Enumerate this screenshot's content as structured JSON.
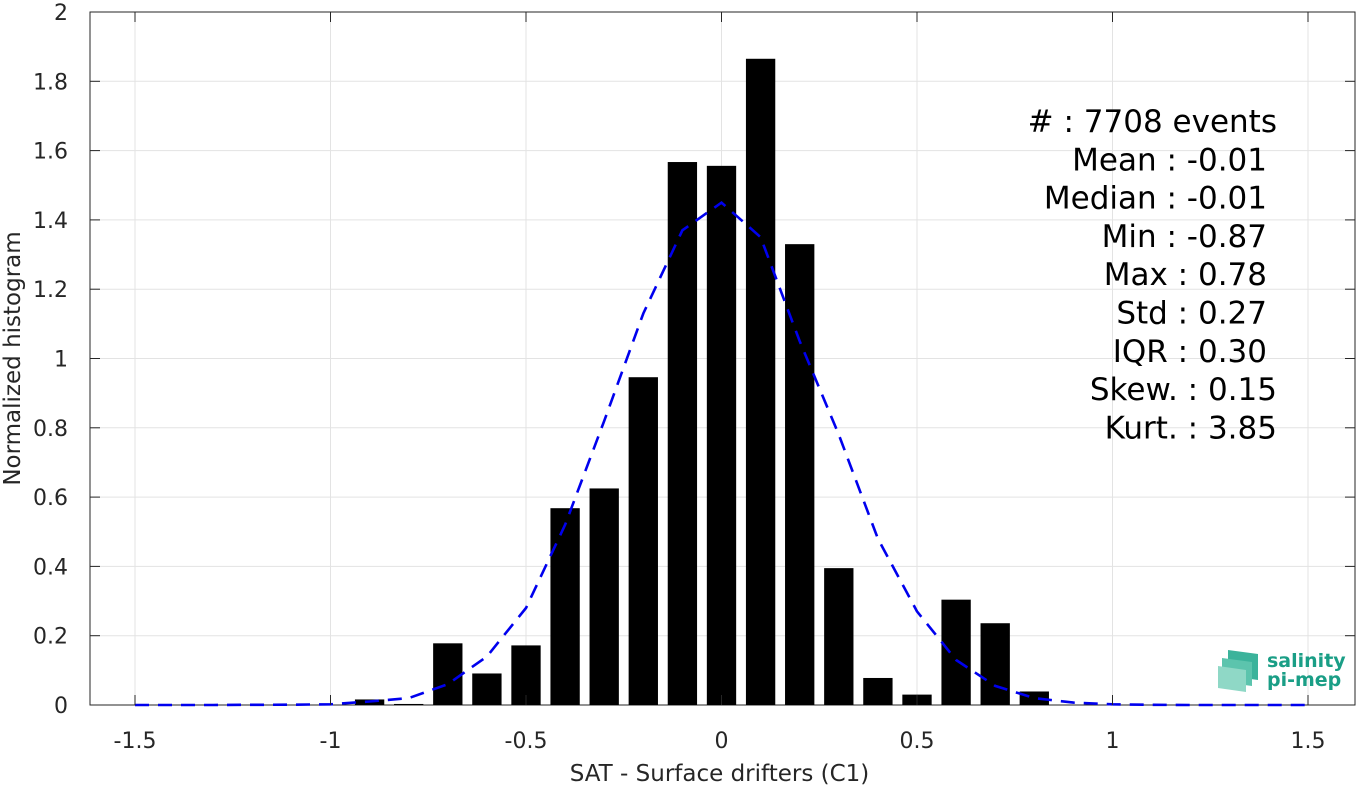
{
  "chart_data": {
    "type": "bar",
    "xlabel": "SAT - Surface drifters (C1)",
    "ylabel": "Normalized histogram",
    "xlim": [
      -1.5,
      1.5
    ],
    "ylim": [
      0,
      2
    ],
    "grid": true,
    "xticks": [
      "-1.5",
      "-1",
      "-0.5",
      "0",
      "0.5",
      "1",
      "1.5"
    ],
    "yticks": [
      "0",
      "0.2",
      "0.4",
      "0.6",
      "0.8",
      "1",
      "1.2",
      "1.4",
      "1.6",
      "1.8",
      "2"
    ],
    "bins": [
      -0.9,
      -0.8,
      -0.7,
      -0.6,
      -0.5,
      -0.4,
      -0.3,
      -0.2,
      -0.1,
      0.0,
      0.1,
      0.2,
      0.3,
      0.4,
      0.5,
      0.6,
      0.7,
      0.8
    ],
    "values": [
      0.016,
      0.003,
      0.178,
      0.091,
      0.172,
      0.568,
      0.625,
      0.946,
      1.567,
      1.556,
      1.865,
      1.33,
      0.395,
      0.078,
      0.03,
      0.304,
      0.236,
      0.039
    ],
    "bar_color": "#000000",
    "fit": {
      "style": "dashed",
      "color": "#0000ee",
      "x": [
        -1.5,
        -1.4,
        -1.3,
        -1.2,
        -1.1,
        -1.0,
        -0.9,
        -0.8,
        -0.7,
        -0.6,
        -0.5,
        -0.4,
        -0.3,
        -0.2,
        -0.1,
        0.0,
        0.1,
        0.2,
        0.3,
        0.4,
        0.5,
        0.6,
        0.7,
        0.8,
        0.9,
        1.0,
        1.1,
        1.2,
        1.3,
        1.4,
        1.5
      ],
      "y": [
        0,
        0,
        0,
        0.0005,
        0.001,
        0.002,
        0.01,
        0.02,
        0.06,
        0.14,
        0.28,
        0.52,
        0.82,
        1.13,
        1.37,
        1.45,
        1.35,
        1.05,
        0.78,
        0.48,
        0.27,
        0.13,
        0.055,
        0.02,
        0.007,
        0.002,
        0.0005,
        0,
        0,
        0,
        0
      ]
    },
    "annotations": [
      "#  : 7708 events",
      "Mean : -0.01",
      "Median : -0.01",
      "Min : -0.87",
      "Max : 0.78",
      "Std : 0.27",
      "IQR : 0.30",
      "Skew. : 0.15",
      "Kurt. : 3.85"
    ]
  },
  "logo": {
    "line1": "salinity",
    "line2": "pi-mep",
    "color": "#1a9e86"
  }
}
